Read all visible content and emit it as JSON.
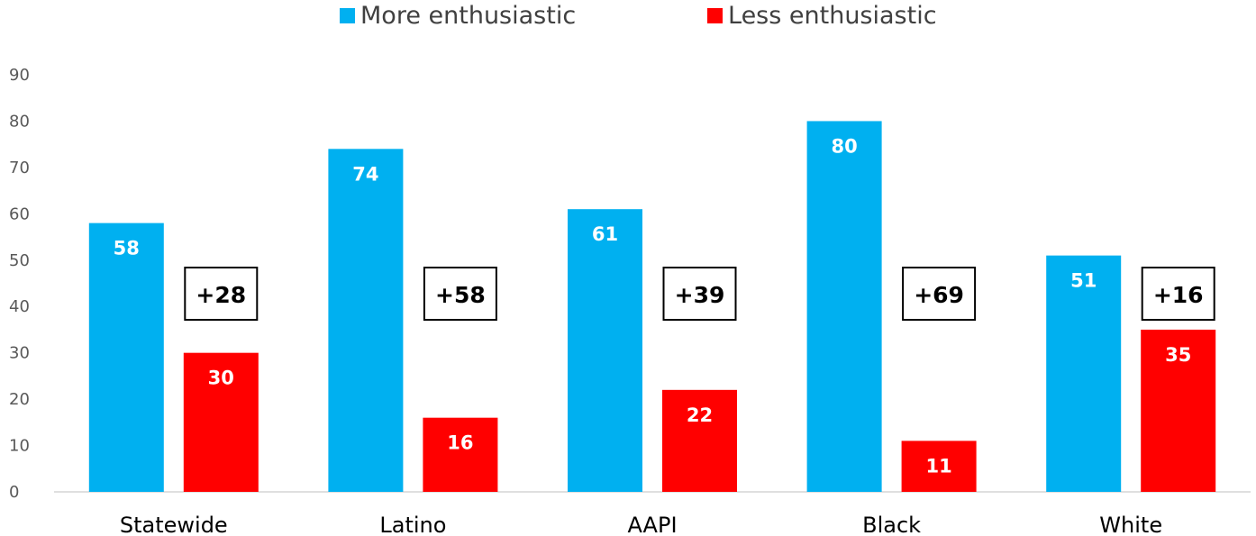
{
  "chart_data": {
    "type": "bar",
    "categories": [
      "Statewide",
      "Latino",
      "AAPI",
      "Black",
      "White"
    ],
    "series": [
      {
        "name": "More enthusiastic",
        "color": "#00B0F0",
        "values": [
          58,
          74,
          61,
          80,
          51
        ]
      },
      {
        "name": "Less enthusiastic",
        "color": "#FF0000",
        "values": [
          30,
          16,
          22,
          11,
          35
        ]
      }
    ],
    "annotations": [
      "+28",
      "+58",
      "+39",
      "+69",
      "+16"
    ],
    "y_ticks": [
      0,
      10,
      20,
      30,
      40,
      50,
      60,
      70,
      80,
      90
    ],
    "ylim": [
      0,
      90
    ],
    "grid": false,
    "legend_position": "top-center"
  }
}
